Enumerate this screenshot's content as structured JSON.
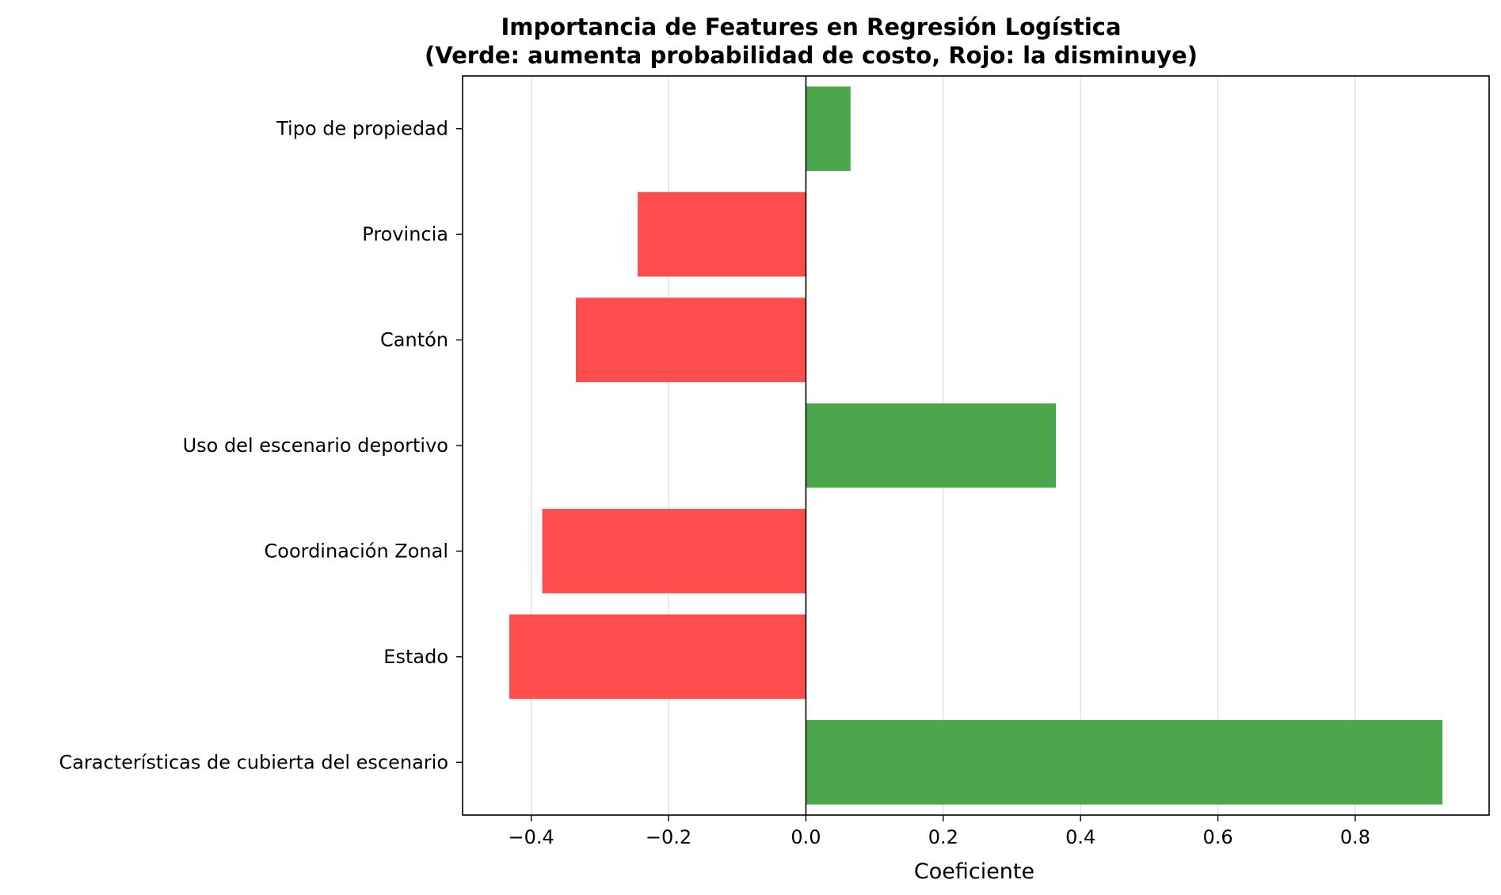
{
  "chart_data": {
    "type": "bar",
    "orientation": "horizontal",
    "title": "Importancia de Features en Regresión Logística",
    "subtitle": "(Verde: aumenta probabilidad de costo, Rojo: la disminuye)",
    "xlabel": "Coeficiente",
    "ylabel": "",
    "xlim": [
      -0.5,
      0.995
    ],
    "xticks": [
      -0.4,
      -0.2,
      0.0,
      0.2,
      0.4,
      0.6,
      0.8
    ],
    "xtick_labels": [
      "−0.4",
      "−0.2",
      "0.0",
      "0.2",
      "0.4",
      "0.6",
      "0.8"
    ],
    "grid": "vertical",
    "categories": [
      "Tipo de propiedad",
      "Provincia",
      "Cantón",
      "Uso del escenario deportivo",
      "Coordinación Zonal",
      "Estado",
      "Características de cubierta del escenario"
    ],
    "values": [
      0.065,
      -0.245,
      -0.335,
      0.364,
      -0.384,
      -0.432,
      0.927
    ],
    "colors": {
      "positive": "#4ca64c",
      "negative": "#ff4d4d",
      "zero_line": "#000000"
    }
  }
}
